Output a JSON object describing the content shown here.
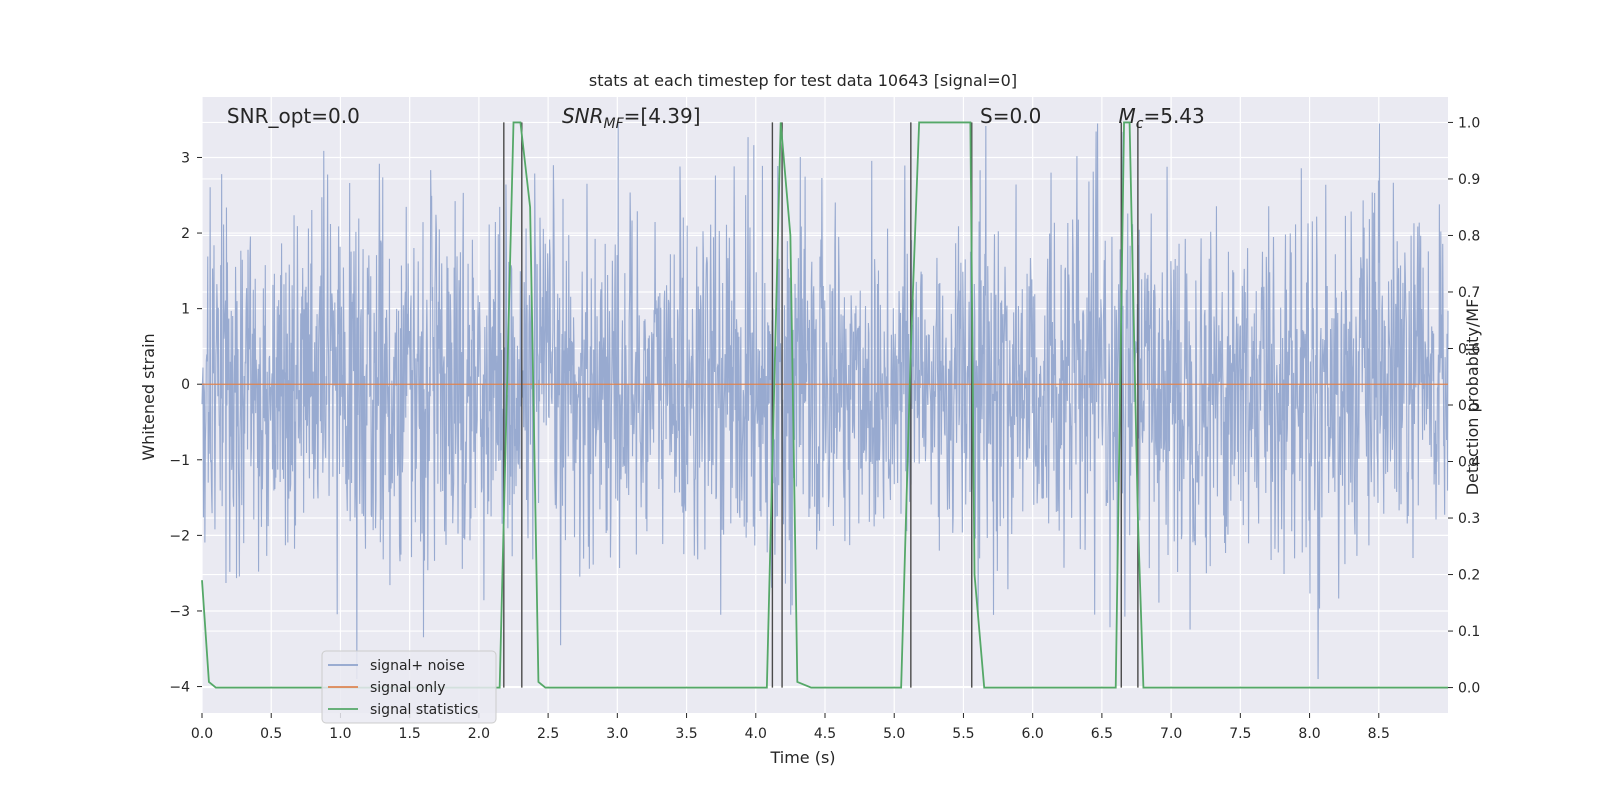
{
  "chart_data": {
    "type": "line",
    "title": "stats at each timestep for test data 10643 [signal=0]",
    "xlabel": "Time (s)",
    "ylabel": "Whitened strain",
    "y2label": "Detection probability/MF",
    "xlim": [
      0.0,
      9.0
    ],
    "ylim": [
      -4.35,
      3.8
    ],
    "y2lim": [
      -0.045,
      1.045
    ],
    "xticks": [
      0.0,
      0.5,
      1.0,
      1.5,
      2.0,
      2.5,
      3.0,
      3.5,
      4.0,
      4.5,
      5.0,
      5.5,
      6.0,
      6.5,
      7.0,
      7.5,
      8.0,
      8.5
    ],
    "yticks": [
      -4,
      -3,
      -2,
      -1,
      0,
      1,
      2,
      3
    ],
    "ytick_labels": [
      "−4",
      "−3",
      "−2",
      "−1",
      "0",
      "1",
      "2",
      "3"
    ],
    "y2ticks": [
      0.0,
      0.1,
      0.2,
      0.3,
      0.4,
      0.5,
      0.6,
      0.7,
      0.8,
      0.9,
      1.0
    ],
    "annotations": [
      {
        "label": "SNR_opt=0.0",
        "x": 0.18
      },
      {
        "label": "SNR_MF=[4.39]",
        "x": 2.6
      },
      {
        "label": "S=0.0",
        "x": 5.62
      },
      {
        "label": "M_c=5.43",
        "x": 6.62
      }
    ],
    "legend": {
      "position": "lower-left",
      "entries": [
        "signal+ noise",
        "signal only",
        "signal statistics"
      ]
    },
    "colors": {
      "noise": "#8fa3cc",
      "signal_only": "#dd8452",
      "statistics": "#55a868",
      "vlines": "#4a4a4a",
      "background": "#eaeaf2",
      "grid": "#ffffff"
    },
    "grid": true,
    "series": [
      {
        "name": "signal+ noise",
        "kind": "noise",
        "approx_range": [
          -3.9,
          3.45
        ],
        "typical_spread": 1.0
      },
      {
        "name": "signal only",
        "x": [
          0.0,
          9.0
        ],
        "y": [
          0.0,
          0.0
        ]
      },
      {
        "name": "signal statistics",
        "axis": "right",
        "x": [
          0.0,
          0.05,
          0.1,
          2.15,
          2.25,
          2.3,
          2.37,
          2.43,
          2.48,
          2.55,
          4.08,
          4.18,
          4.25,
          4.3,
          4.4,
          5.05,
          5.12,
          5.18,
          5.55,
          5.58,
          5.65,
          6.6,
          6.66,
          6.7,
          6.76,
          6.8,
          6.85,
          9.0
        ],
        "y": [
          0.19,
          0.01,
          0.0,
          0.0,
          1.0,
          1.0,
          0.85,
          0.01,
          0.0,
          0.0,
          0.0,
          1.0,
          0.8,
          0.01,
          0.0,
          0.0,
          0.6,
          1.0,
          1.0,
          0.2,
          0.0,
          0.0,
          1.0,
          1.0,
          0.3,
          0.0,
          0.0,
          0.0
        ]
      }
    ],
    "vlines": [
      2.18,
      2.31,
      4.12,
      4.19,
      5.12,
      5.56,
      6.64,
      6.76
    ]
  }
}
